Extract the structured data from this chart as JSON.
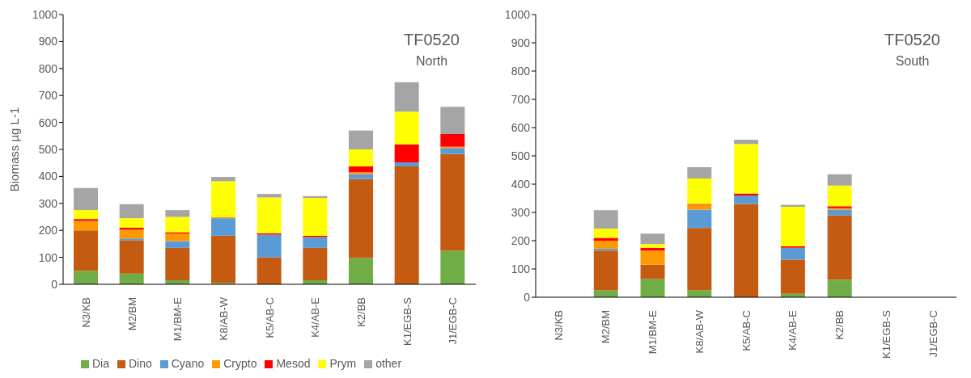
{
  "chart_data": [
    {
      "type": "bar",
      "stacked": true,
      "ylabel": "Biomass µg L-1",
      "annotations": [
        "TF0520",
        "North"
      ],
      "categories": [
        "N3/KB",
        "M2/BM",
        "M1/BM-E",
        "K8/AB-W",
        "K5/AB-C",
        "K4/AB-E",
        "K2/BB",
        "K1/EGB-S",
        "J1/EGB-C"
      ],
      "ylim": [
        0,
        1000
      ],
      "yticks": [
        0,
        100,
        200,
        300,
        400,
        500,
        600,
        700,
        800,
        900,
        1000
      ],
      "grid": false,
      "legend": "bottom",
      "series": [
        {
          "name": "Dia",
          "color": "#70ad47",
          "values": [
            50,
            40,
            15,
            5,
            null,
            15,
            97,
            null,
            125
          ]
        },
        {
          "name": "Dino",
          "color": "#c55a11",
          "values": [
            150,
            123,
            120,
            175,
            100,
            120,
            293,
            437,
            358
          ]
        },
        {
          "name": "Cyano",
          "color": "#5b9bd5",
          "values": [
            0,
            7,
            25,
            65,
            84,
            40,
            18,
            15,
            22
          ]
        },
        {
          "name": "Crypto",
          "color": "#ff9900",
          "values": [
            35,
            33,
            28,
            5,
            0,
            0,
            7,
            0,
            5
          ]
        },
        {
          "name": "Mesod",
          "color": "#ff0000",
          "values": [
            7,
            7,
            5,
            0,
            5,
            5,
            22,
            67,
            47
          ]
        },
        {
          "name": "Prym",
          "color": "#ffff00",
          "values": [
            33,
            35,
            57,
            132,
            133,
            140,
            63,
            121,
            0
          ]
        },
        {
          "name": "other",
          "color": "#a5a5a5",
          "values": [
            82,
            52,
            25,
            16,
            13,
            7,
            70,
            109,
            101
          ]
        }
      ]
    },
    {
      "type": "bar",
      "stacked": true,
      "annotations": [
        "TF0520",
        "South"
      ],
      "categories": [
        "N3/KB",
        "M2/BM",
        "M1/BM-E",
        "K8/AB-W",
        "K5/AB-C",
        "K4/AB-E",
        "K2/BB",
        "K1/EGB-S",
        "J1/EGB-C"
      ],
      "ylim": [
        0,
        1000
      ],
      "yticks": [
        0,
        100,
        200,
        300,
        400,
        500,
        600,
        700,
        800,
        900,
        1000
      ],
      "grid": false,
      "series": [
        {
          "color": "#70ad47",
          "values": [
            null,
            25,
            65,
            25,
            null,
            12,
            62,
            null,
            null
          ]
        },
        {
          "color": "#c55a11",
          "values": [
            null,
            140,
            50,
            220,
            330,
            121,
            228,
            null,
            null
          ]
        },
        {
          "color": "#5b9bd5",
          "values": [
            null,
            7,
            0,
            65,
            30,
            42,
            20,
            null,
            null
          ]
        },
        {
          "color": "#ff9900",
          "values": [
            null,
            28,
            50,
            17,
            0,
            0,
            5,
            null,
            null
          ]
        },
        {
          "color": "#ff0000",
          "values": [
            null,
            10,
            10,
            3,
            7,
            5,
            7,
            null,
            null
          ]
        },
        {
          "color": "#ffff00",
          "values": [
            null,
            33,
            13,
            90,
            175,
            140,
            73,
            null,
            null
          ]
        },
        {
          "color": "#a5a5a5",
          "values": [
            null,
            65,
            37,
            40,
            15,
            7,
            40,
            null,
            null
          ]
        }
      ]
    }
  ]
}
